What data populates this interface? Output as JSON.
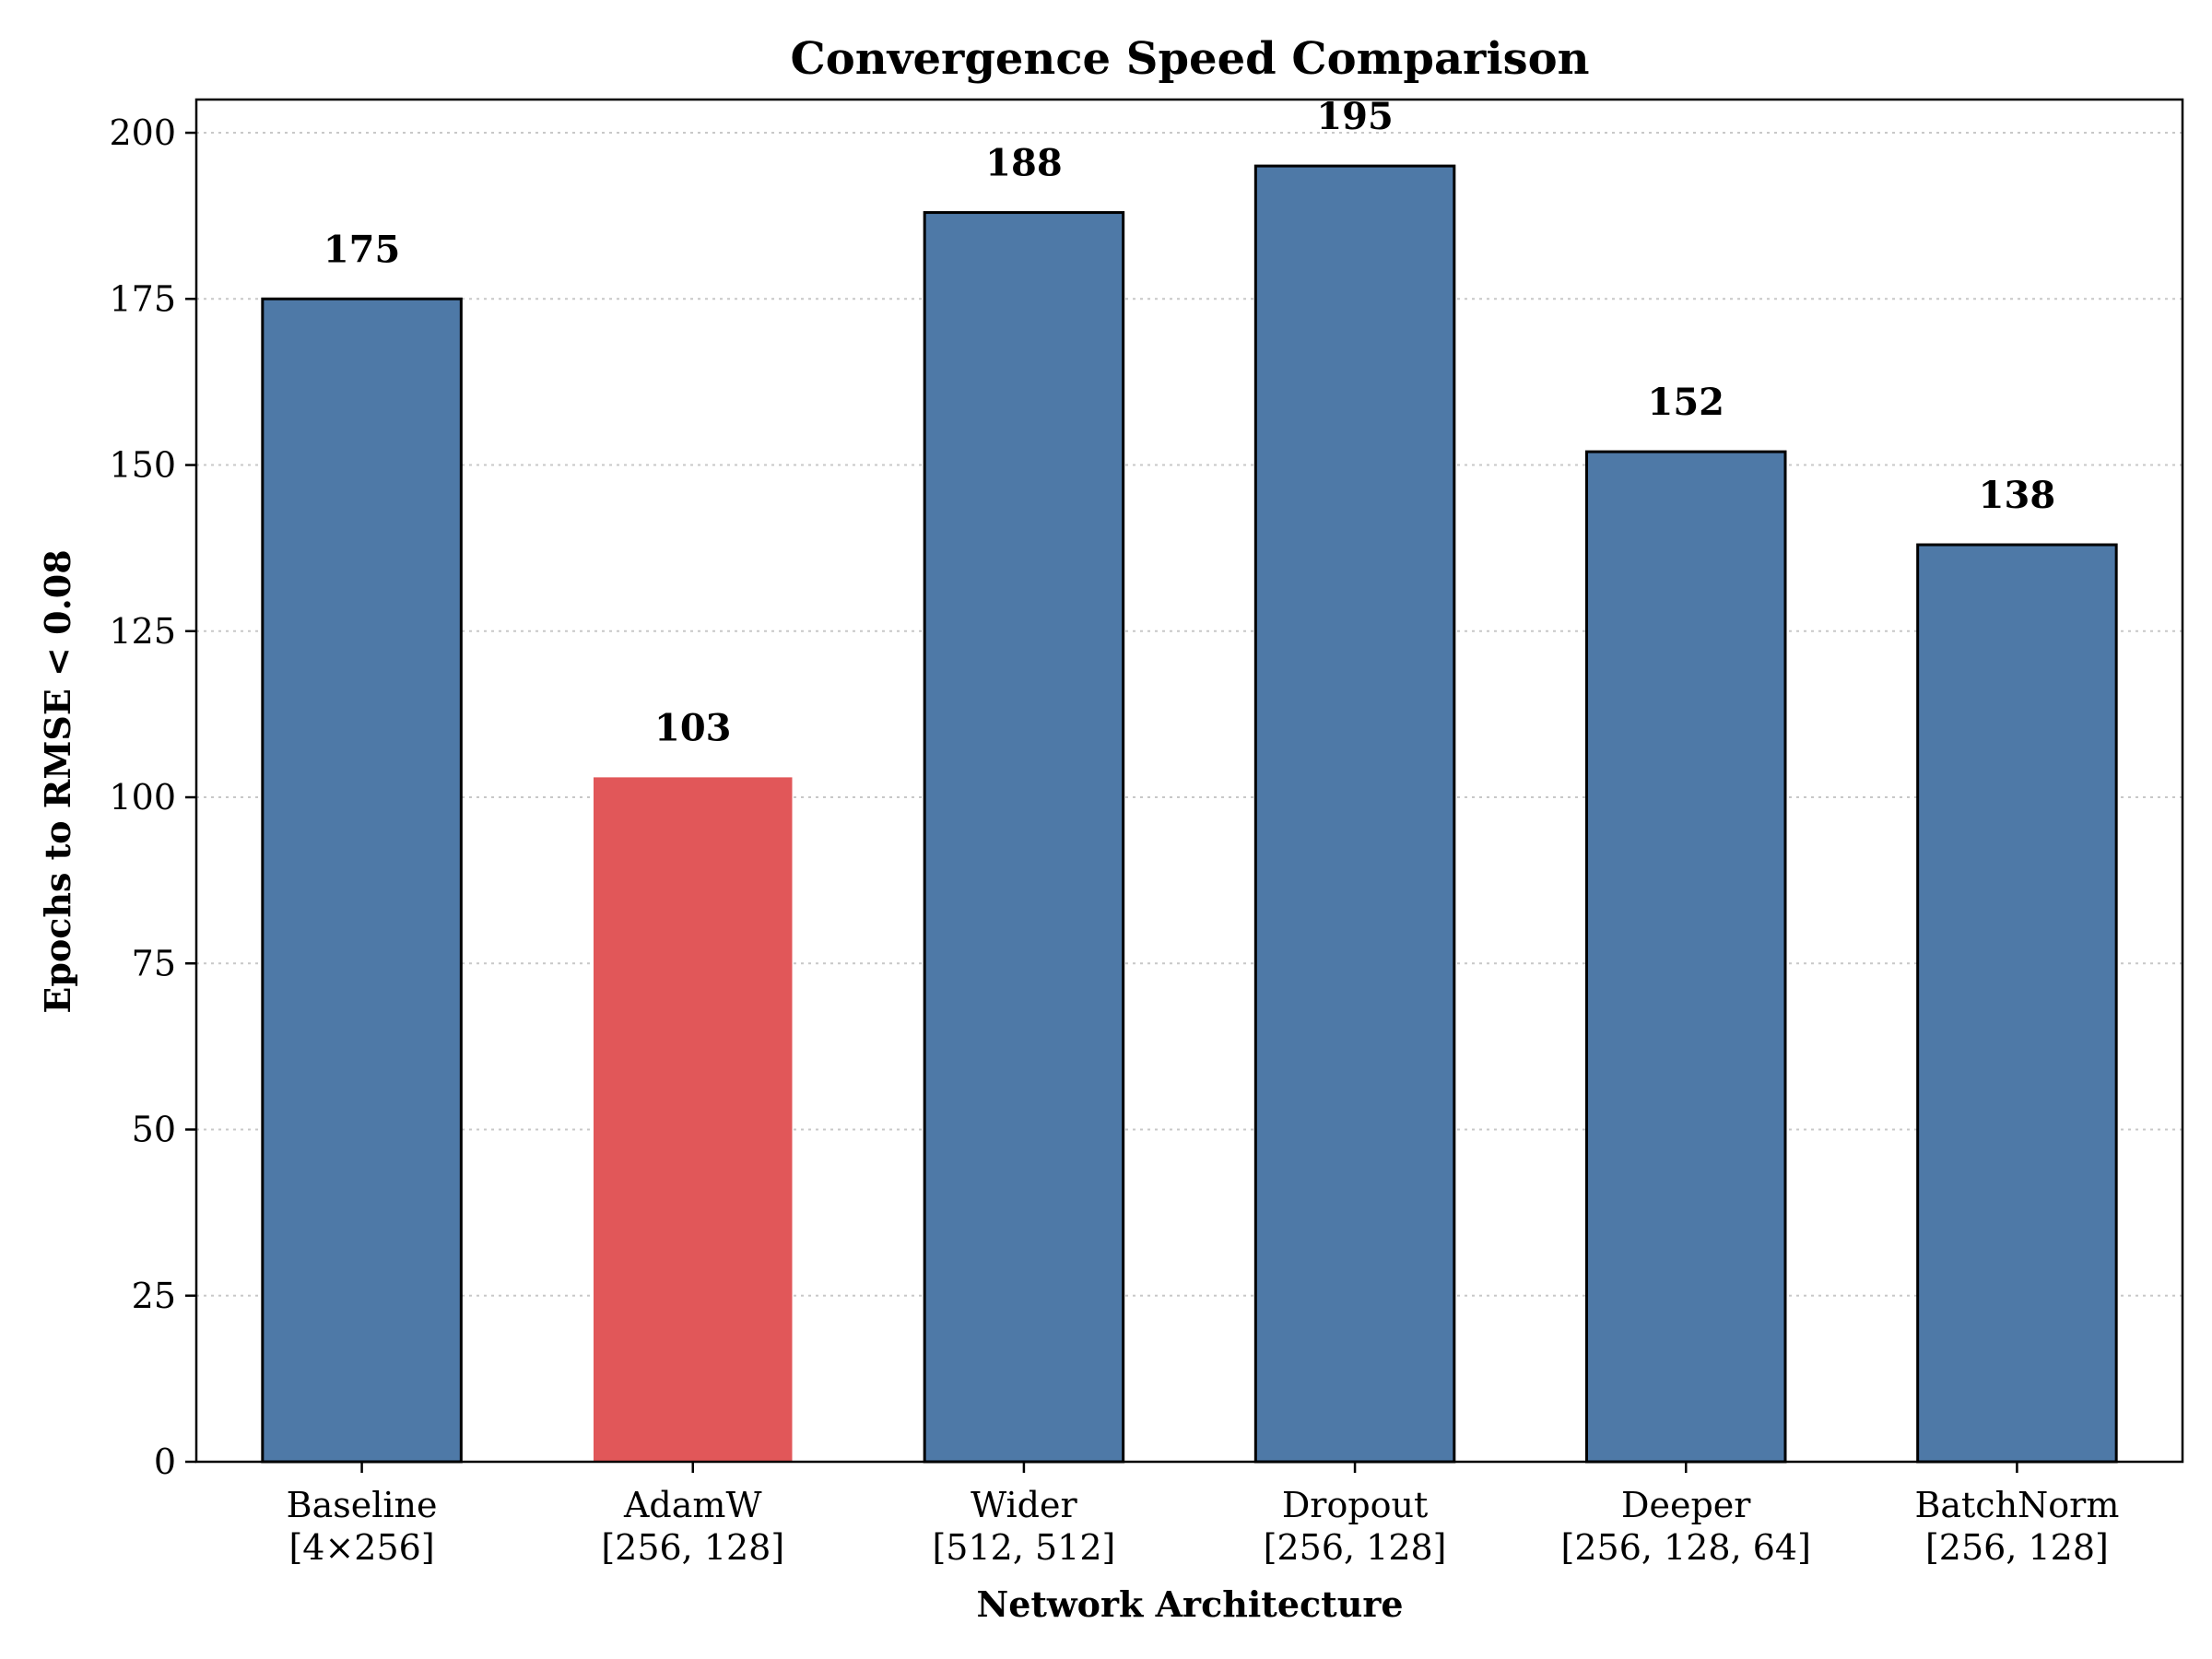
{
  "chart_data": {
    "type": "bar",
    "title": "Convergence Speed Comparison",
    "xlabel": "Network Architecture",
    "ylabel": "Epochs to RMSE < 0.08",
    "ylim": [
      0,
      205
    ],
    "yticks": [
      0,
      25,
      50,
      75,
      100,
      125,
      150,
      175,
      200
    ],
    "grid": "horizontal dotted",
    "categories": [
      {
        "name": "Baseline",
        "config": "[4×256]"
      },
      {
        "name": "AdamW",
        "config": "[256, 128]"
      },
      {
        "name": "Wider",
        "config": "[512, 512]"
      },
      {
        "name": "Dropout",
        "config": "[256, 128]"
      },
      {
        "name": "Deeper",
        "config": "[256, 128, 64]"
      },
      {
        "name": "BatchNorm",
        "config": "[256, 128]"
      }
    ],
    "values": [
      175,
      103,
      188,
      195,
      152,
      138
    ],
    "data_labels": [
      "175",
      "103",
      "188",
      "195",
      "152",
      "138"
    ],
    "highlight_index": 1,
    "colors": {
      "bar": "#4e79a7",
      "highlight": "#e15759",
      "edge": "#000000"
    }
  }
}
